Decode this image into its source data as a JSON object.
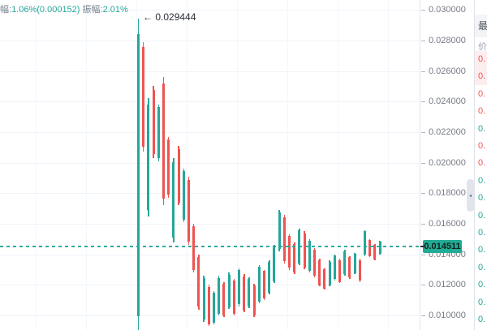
{
  "header": {
    "label1": "幅:",
    "value1": "1.06%(0.000152)",
    "label2": " 振幅:",
    "value2": "2.01%"
  },
  "annotation": {
    "text": "← 0.029444"
  },
  "price_badge": {
    "value": "0.014511"
  },
  "axis": {
    "labels": [
      "0.030000",
      "0.028000",
      "0.026000",
      "0.024000",
      "0.022000",
      "0.020000",
      "0.018000",
      "0.016000",
      "0.014000",
      "0.012000",
      "0.010000"
    ]
  },
  "scroll_handle": {
    "arrow": "◂"
  },
  "side_panel": {
    "title_partial": "最",
    "column_partial": "价",
    "rows": [
      {
        "text": "0.",
        "color": "red",
        "highlight": true
      },
      {
        "text": "0.",
        "color": "red",
        "highlight": true
      },
      {
        "text": "0.",
        "color": "red",
        "highlight": false
      },
      {
        "text": "0.",
        "color": "red",
        "highlight": false
      },
      {
        "text": "0.",
        "color": "green",
        "highlight": false
      },
      {
        "text": "0.",
        "color": "red",
        "highlight": false
      },
      {
        "text": "0.",
        "color": "red",
        "highlight": false
      },
      {
        "text": "0.",
        "color": "green",
        "highlight": false
      },
      {
        "text": "0.",
        "color": "green",
        "highlight": false
      },
      {
        "text": "0.",
        "color": "green",
        "highlight": false
      },
      {
        "text": "0.",
        "color": "green",
        "highlight": false
      },
      {
        "text": "0.",
        "color": "green",
        "highlight": false
      },
      {
        "text": "0.",
        "color": "green",
        "highlight": false
      },
      {
        "text": "0.",
        "color": "green",
        "highlight": false
      },
      {
        "text": "0.",
        "color": "green",
        "highlight": false
      },
      {
        "text": "0.",
        "color": "green",
        "highlight": false
      }
    ]
  },
  "colors": {
    "green": "#26a69a",
    "red": "#ef5350",
    "badge": "#22ab94",
    "grid": "#f0f3fa",
    "axis_text": "#787b86"
  },
  "chart_data": {
    "type": "candlestick",
    "title": "",
    "ylabel": "price",
    "y_ticks": [
      0.03,
      0.028,
      0.026,
      0.024,
      0.022,
      0.02,
      0.018,
      0.016,
      0.014,
      0.012,
      0.01
    ],
    "ylim": [
      0.00905,
      0.03064
    ],
    "last_price": 0.014511,
    "peak_annotation": 0.029444,
    "change_percent": "1.06%",
    "change_value": "0.000152",
    "amplitude_percent": "2.01%",
    "grid": true,
    "legend": "none",
    "x_start": 170.5,
    "x_step": 6.2,
    "x_gridlines": [
      44,
      106,
      168,
      230,
      292,
      354,
      416,
      478
    ],
    "candle_format": "[high, low, direction G=up/green R=down/red]",
    "candles": [
      [
        0.029444,
        0.0089,
        "G"
      ],
      [
        0.0279,
        0.0207,
        "R"
      ],
      [
        0.0242,
        0.0165,
        "G"
      ],
      [
        0.025,
        0.0203,
        "R"
      ],
      [
        0.0238,
        0.0201,
        "G"
      ],
      [
        0.0256,
        0.0172,
        "R"
      ],
      [
        0.0217,
        0.0177,
        "R"
      ],
      [
        0.0203,
        0.0148,
        "G"
      ],
      [
        0.0211,
        0.0172,
        "R"
      ],
      [
        0.0196,
        0.0161,
        "G"
      ],
      [
        0.0191,
        0.0146,
        "R"
      ],
      [
        0.016,
        0.0128,
        "R"
      ],
      [
        0.014,
        0.0104,
        "R"
      ],
      [
        0.0126,
        0.0096,
        "G"
      ],
      [
        0.012,
        0.0093,
        "R"
      ],
      [
        0.0116,
        0.0094,
        "G"
      ],
      [
        0.0126,
        0.01,
        "G"
      ],
      [
        0.0122,
        0.0099,
        "R"
      ],
      [
        0.0128,
        0.0104,
        "G"
      ],
      [
        0.0124,
        0.01,
        "R"
      ],
      [
        0.0131,
        0.0106,
        "G"
      ],
      [
        0.0127,
        0.0102,
        "R"
      ],
      [
        0.0125,
        0.0105,
        "G"
      ],
      [
        0.0121,
        0.0099,
        "R"
      ],
      [
        0.0133,
        0.0108,
        "G"
      ],
      [
        0.013,
        0.011,
        "R"
      ],
      [
        0.0136,
        0.0114,
        "G"
      ],
      [
        0.0146,
        0.0121,
        "G"
      ],
      [
        0.0169,
        0.0142,
        "G"
      ],
      [
        0.0166,
        0.0134,
        "R"
      ],
      [
        0.0153,
        0.013,
        "R"
      ],
      [
        0.0148,
        0.0127,
        "R"
      ],
      [
        0.0157,
        0.0133,
        "G"
      ],
      [
        0.0155,
        0.013,
        "R"
      ],
      [
        0.015,
        0.0128,
        "G"
      ],
      [
        0.0144,
        0.0125,
        "R"
      ],
      [
        0.0137,
        0.0119,
        "R"
      ],
      [
        0.0131,
        0.0117,
        "R"
      ],
      [
        0.0136,
        0.0119,
        "G"
      ],
      [
        0.014,
        0.0123,
        "G"
      ],
      [
        0.0137,
        0.0121,
        "R"
      ],
      [
        0.0143,
        0.0126,
        "G"
      ],
      [
        0.0139,
        0.0124,
        "R"
      ],
      [
        0.0141,
        0.0127,
        "G"
      ],
      [
        0.0137,
        0.0122,
        "R"
      ],
      [
        0.0156,
        0.0139,
        "G"
      ],
      [
        0.015,
        0.0138,
        "R"
      ],
      [
        0.0147,
        0.0136,
        "R"
      ],
      [
        0.0149,
        0.014,
        "G"
      ]
    ]
  }
}
